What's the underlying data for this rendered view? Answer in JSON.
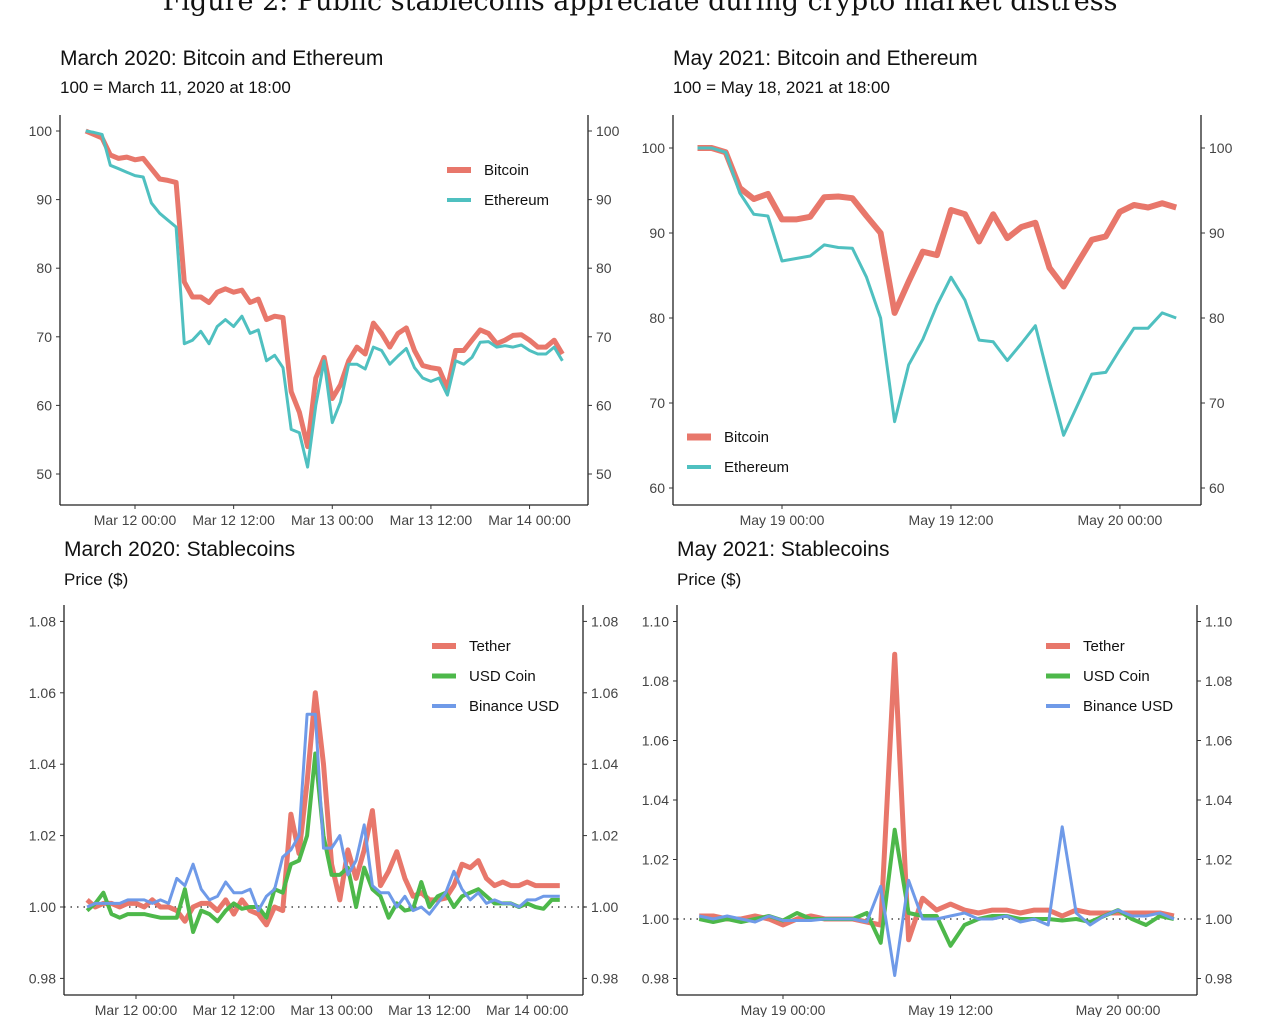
{
  "figure_title": "Figure 2: Public stablecoins appreciate during crypto market distress",
  "colors": {
    "bitcoin": "#E8776B",
    "ethereum": "#4FC0C0",
    "tether": "#E8776B",
    "usdcoin": "#4DB84A",
    "binance": "#6F9AE8"
  },
  "chart_data": [
    {
      "type": "line",
      "title": "March 2020: Bitcoin and Ethereum",
      "subtitle": "100 = March 11, 2020 at 18:00",
      "xlabel": "",
      "ylabel": "",
      "x_start_hour": -6,
      "x_step_hours": 1,
      "x_ticks": [
        {
          "label": "Mar 12 00:00",
          "hour": 0
        },
        {
          "label": "Mar 12 12:00",
          "hour": 12
        },
        {
          "label": "Mar 13 00:00",
          "hour": 24
        },
        {
          "label": "Mar 13 12:00",
          "hour": 36
        },
        {
          "label": "Mar 14 00:00",
          "hour": 48
        }
      ],
      "y_ticks": [
        {
          "label": "50",
          "value": 50
        },
        {
          "label": "60",
          "value": 60
        },
        {
          "label": "70",
          "value": 70
        },
        {
          "label": "80",
          "value": 80
        },
        {
          "label": "90",
          "value": 90
        },
        {
          "label": "100",
          "value": 100
        }
      ],
      "legend_position": "top-right",
      "series": [
        {
          "name": "Bitcoin",
          "color_key": "bitcoin",
          "width": 5,
          "values": [
            100,
            99.5,
            99,
            96.5,
            96,
            96.2,
            95.8,
            96,
            94.5,
            93,
            92.8,
            92.5,
            78,
            75.8,
            75.8,
            75,
            76.5,
            77,
            76.5,
            76.8,
            75,
            75.5,
            72.5,
            73,
            72.8,
            62,
            59,
            54,
            64,
            67,
            61,
            63,
            66.5,
            68.5,
            67.5,
            72,
            70.5,
            68.5,
            70.5,
            71.3,
            68,
            65.8,
            65.5,
            65.3,
            62.5,
            68,
            68,
            69.5,
            71,
            70.5,
            69,
            69.5,
            70.2,
            70.3,
            69.5,
            68.5,
            68.5,
            69.5,
            67.5
          ]
        },
        {
          "name": "Ethereum",
          "color_key": "ethereum",
          "width": 3,
          "values": [
            100,
            99.8,
            99.5,
            95,
            94.5,
            94,
            93.5,
            93.3,
            89.5,
            88,
            87,
            86,
            69,
            69.5,
            70.8,
            69,
            71.5,
            72.5,
            71.5,
            73,
            70.5,
            71,
            66.5,
            67.3,
            65.5,
            56.5,
            56,
            51,
            60,
            66.5,
            57.5,
            60.5,
            66,
            66,
            65.3,
            68.5,
            68,
            66,
            67.2,
            68.3,
            65.5,
            64,
            63.5,
            64,
            61.5,
            66.5,
            66,
            67,
            69.2,
            69.3,
            68.5,
            68.7,
            68.5,
            68.8,
            68,
            67.5,
            67.5,
            68.5,
            66.5
          ]
        }
      ]
    },
    {
      "type": "line",
      "title": "May 2021: Bitcoin and Ethereum",
      "subtitle": "100 = May 18, 2021 at 18:00",
      "xlabel": "",
      "ylabel": "",
      "x_start_hour": -6,
      "x_step_hours": 1,
      "x_ticks": [
        {
          "label": "May 19 00:00",
          "hour": 0
        },
        {
          "label": "May 19 12:00",
          "hour": 12
        },
        {
          "label": "May 20 00:00",
          "hour": 24
        }
      ],
      "y_ticks": [
        {
          "label": "60",
          "value": 60
        },
        {
          "label": "70",
          "value": 70
        },
        {
          "label": "80",
          "value": 80
        },
        {
          "label": "90",
          "value": 90
        },
        {
          "label": "100",
          "value": 100
        }
      ],
      "legend_position": "bottom-left",
      "series": [
        {
          "name": "Bitcoin",
          "color_key": "bitcoin",
          "width": 6,
          "values": [
            100,
            100,
            99.5,
            95.3,
            94,
            94.6,
            91.6,
            91.6,
            91.9,
            94.2,
            94.3,
            94.1,
            92,
            90,
            80.6,
            84.3,
            87.8,
            87.4,
            92.7,
            92.2,
            89,
            92.2,
            89.4,
            90.7,
            91.2,
            85.9,
            83.7,
            86.5,
            89.2,
            89.6,
            92.5,
            93.3,
            93,
            93.5,
            93
          ]
        },
        {
          "name": "Ethereum",
          "color_key": "ethereum",
          "width": 3,
          "values": [
            100,
            100,
            99.5,
            94.7,
            92.2,
            92,
            86.7,
            87,
            87.3,
            88.6,
            88.3,
            88.2,
            84.8,
            80,
            67.8,
            74.5,
            77.5,
            81.5,
            84.8,
            82.1,
            77.4,
            77.2,
            75,
            77,
            79.1,
            72.5,
            66.2,
            69.8,
            73.4,
            73.6,
            76.3,
            78.8,
            78.8,
            80.6,
            80
          ]
        }
      ]
    },
    {
      "type": "line",
      "title": "March 2020: Stablecoins",
      "subtitle": "Price ($)",
      "xlabel": "",
      "ylabel": "Price ($)",
      "reference_line": 1.0,
      "x_start_hour": -6,
      "x_step_hours": 1,
      "x_ticks": [
        {
          "label": "Mar 12 00:00",
          "hour": 0
        },
        {
          "label": "Mar 12 12:00",
          "hour": 12
        },
        {
          "label": "Mar 13 00:00",
          "hour": 24
        },
        {
          "label": "Mar 13 12:00",
          "hour": 36
        },
        {
          "label": "Mar 14 00:00",
          "hour": 48
        }
      ],
      "y_ticks": [
        {
          "label": "0.98",
          "value": 0.98
        },
        {
          "label": "1.00",
          "value": 1.0
        },
        {
          "label": "1.02",
          "value": 1.02
        },
        {
          "label": "1.04",
          "value": 1.04
        },
        {
          "label": "1.06",
          "value": 1.06
        },
        {
          "label": "1.08",
          "value": 1.08
        }
      ],
      "legend_position": "top-right",
      "series": [
        {
          "name": "Tether",
          "color_key": "tether",
          "width": 5,
          "values": [
            1.002,
            1.0,
            1.001,
            1.001,
            1.0,
            1.001,
            1.001,
            1.0,
            1.002,
            1.0,
            1.0,
            0.999,
            0.996,
            1.0,
            1.001,
            1.001,
            0.999,
            1.002,
            0.998,
            1.002,
            0.999,
            0.998,
            0.995,
            1.0,
            0.999,
            1.026,
            1.015,
            1.035,
            1.06,
            1.04,
            1.012,
            1.002,
            1.016,
            1.008,
            1.016,
            1.027,
            1.006,
            1.01,
            1.0155,
            1.008,
            1.003,
            1.004,
            1.002,
            1.002,
            1.0025,
            1.006,
            1.012,
            1.011,
            1.013,
            1.008,
            1.006,
            1.007,
            1.006,
            1.006,
            1.007,
            1.006,
            1.006,
            1.006,
            1.006
          ]
        },
        {
          "name": "USD Coin",
          "color_key": "usdcoin",
          "width": 4,
          "values": [
            0.999,
            1.001,
            1.004,
            0.998,
            0.997,
            0.998,
            0.998,
            0.998,
            0.9975,
            0.997,
            0.997,
            0.997,
            1.005,
            0.993,
            0.999,
            0.998,
            0.996,
            0.999,
            1.001,
            0.9995,
            1.0,
            1.0,
            0.997,
            1.005,
            1.004,
            1.012,
            1.013,
            1.02,
            1.043,
            1.02,
            1.009,
            1.009,
            1.011,
            1.0,
            1.011,
            1.005,
            1.003,
            0.997,
            1.001,
            0.999,
            0.9995,
            1.007,
            1.0,
            1.003,
            1.004,
            1.0,
            1.003,
            1.004,
            1.005,
            1.003,
            1.001,
            1.001,
            1.001,
            1.0,
            1.001,
            1.0,
            0.9995,
            1.002,
            1.002
          ]
        },
        {
          "name": "Binance USD",
          "color_key": "binance",
          "width": 3,
          "values": [
            1.0,
            1.001,
            1.001,
            1.001,
            1.001,
            1.002,
            1.002,
            1.002,
            1.001,
            1.002,
            1.001,
            1.008,
            1.006,
            1.012,
            1.005,
            1.002,
            1.003,
            1.007,
            1.004,
            1.004,
            1.005,
            0.999,
            1.003,
            1.005,
            1.014,
            1.016,
            1.02,
            1.054,
            1.054,
            1.0165,
            1.0165,
            1.02,
            1.009,
            1.013,
            1.023,
            1.006,
            1.004,
            1.004,
            1.0,
            1.003,
            0.999,
            1.0,
            0.998,
            1.001,
            1.004,
            1.01,
            1.005,
            1.002,
            1.004,
            1.001,
            1.002,
            1.001,
            1.001,
            1.0,
            1.002,
            1.002,
            1.003,
            1.003,
            1.003
          ]
        }
      ]
    },
    {
      "type": "line",
      "title": "May 2021: Stablecoins",
      "subtitle": "Price ($)",
      "xlabel": "",
      "ylabel": "Price ($)",
      "reference_line": 1.0,
      "x_start_hour": -6,
      "x_step_hours": 1,
      "x_ticks": [
        {
          "label": "May 19 00:00",
          "hour": 0
        },
        {
          "label": "May 19 12:00",
          "hour": 12
        },
        {
          "label": "May 20 00:00",
          "hour": 24
        }
      ],
      "y_ticks": [
        {
          "label": "0.98",
          "value": 0.98
        },
        {
          "label": "1.00",
          "value": 1.0
        },
        {
          "label": "1.02",
          "value": 1.02
        },
        {
          "label": "1.04",
          "value": 1.04
        },
        {
          "label": "1.06",
          "value": 1.06
        },
        {
          "label": "1.08",
          "value": 1.08
        },
        {
          "label": "1.10",
          "value": 1.1
        }
      ],
      "legend_position": "top-right",
      "series": [
        {
          "name": "Tether",
          "color_key": "tether",
          "width": 5,
          "values": [
            1.001,
            1.001,
            1.0,
            1.0,
            1.001,
            1.0,
            0.998,
            1.0,
            1.001,
            1.0,
            1.0,
            1.0,
            0.999,
            0.998,
            1.089,
            0.993,
            1.007,
            1.003,
            1.005,
            1.003,
            1.002,
            1.003,
            1.003,
            1.002,
            1.003,
            1.003,
            1.001,
            1.003,
            1.002,
            1.002,
            1.002,
            1.002,
            1.002,
            1.002,
            1.001
          ]
        },
        {
          "name": "USD Coin",
          "color_key": "usdcoin",
          "width": 4,
          "values": [
            1.0,
            0.999,
            1.0,
            0.999,
            1.0,
            1.001,
            0.9995,
            1.002,
            1.0,
            1.0,
            1.0,
            1.0,
            1.002,
            0.992,
            1.03,
            1.002,
            1.001,
            1.001,
            0.991,
            0.998,
            1.0,
            1.001,
            1.001,
            1.0,
            1.0,
            1.0,
            0.9995,
            1.0,
            0.999,
            1.001,
            1.003,
            1.0,
            0.998,
            1.001,
            1.0
          ]
        },
        {
          "name": "Binance USD",
          "color_key": "binance",
          "width": 3,
          "values": [
            1.001,
            1.0,
            1.001,
            1.0,
            0.999,
            1.001,
            0.9995,
            0.9995,
            0.9995,
            1.0,
            1.0,
            1.0,
            0.999,
            1.011,
            0.981,
            1.013,
            1.0,
            1.0,
            1.001,
            1.002,
            1.0,
            1.0,
            1.001,
            0.999,
            1.0,
            0.998,
            1.031,
            1.002,
            0.998,
            1.001,
            1.003,
            1.001,
            1.001,
            1.002,
            1.0
          ]
        }
      ]
    }
  ]
}
